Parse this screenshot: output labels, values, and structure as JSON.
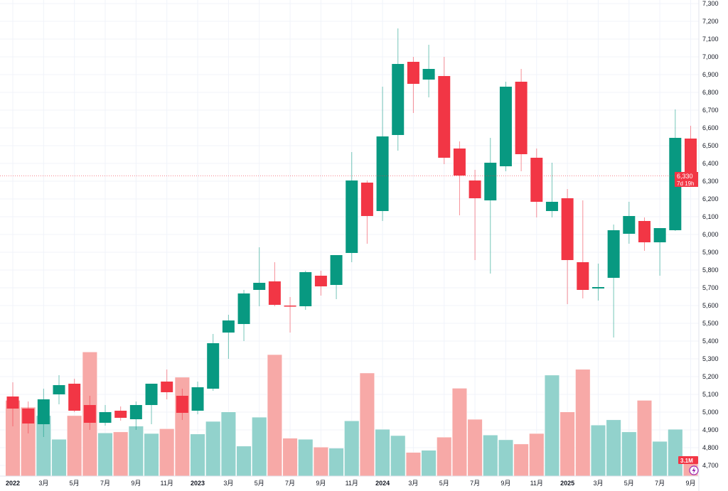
{
  "chart_data": {
    "type": "candlestick",
    "title": "",
    "x_tick_labels": [
      "2022",
      "3月",
      "5月",
      "7月",
      "9月",
      "11月",
      "2023",
      "3月",
      "5月",
      "7月",
      "9月",
      "11月",
      "2024",
      "3月",
      "5月",
      "7月",
      "9月",
      "11月",
      "2025",
      "3月",
      "5月",
      "7月",
      "9月"
    ],
    "y_ticks": [
      "7,300",
      "7,200",
      "7,100",
      "7,000",
      "6,900",
      "6,800",
      "6,700",
      "6,600",
      "6,500",
      "6,400",
      "6,300",
      "6,200",
      "6,100",
      "6,000",
      "5,900",
      "5,800",
      "5,700",
      "5,600",
      "5,500",
      "5,400",
      "5,300",
      "5,200",
      "5,100",
      "5,000",
      "4,900",
      "4,800",
      "4,700"
    ],
    "ylim": [
      4680,
      7300
    ],
    "grid": true,
    "months": [
      "2022-01",
      "2022-02",
      "2022-03",
      "2022-04",
      "2022-05",
      "2022-06",
      "2022-07",
      "2022-08",
      "2022-09",
      "2022-10",
      "2022-11",
      "2022-12",
      "2023-01",
      "2023-02",
      "2023-03",
      "2023-04",
      "2023-05",
      "2023-06",
      "2023-07",
      "2023-08",
      "2023-09",
      "2023-10",
      "2023-11",
      "2023-12",
      "2024-01",
      "2024-02",
      "2024-03",
      "2024-04",
      "2024-05",
      "2024-06",
      "2024-07",
      "2024-08",
      "2024-09",
      "2024-10",
      "2024-11",
      "2024-12",
      "2025-01",
      "2025-02",
      "2025-03",
      "2025-04",
      "2025-05",
      "2025-06",
      "2025-07",
      "2025-08",
      "2025-09"
    ],
    "ohlc": [
      [
        5088,
        5168,
        4920,
        5020
      ],
      [
        5020,
        5060,
        4880,
        4936
      ],
      [
        4932,
        5132,
        4860,
        5072
      ],
      [
        5100,
        5208,
        5044,
        5152
      ],
      [
        5160,
        5188,
        5000,
        5008
      ],
      [
        5040,
        5092,
        4900,
        4940
      ],
      [
        4940,
        5040,
        4924,
        5000
      ],
      [
        5008,
        5032,
        4952,
        4968
      ],
      [
        4960,
        5060,
        4900,
        5040
      ],
      [
        5040,
        5160,
        4932,
        5160
      ],
      [
        5172,
        5240,
        5072,
        5112
      ],
      [
        5092,
        5132,
        4956,
        4996
      ],
      [
        5008,
        5172,
        4988,
        5140
      ],
      [
        5132,
        5440,
        5120,
        5388
      ],
      [
        5448,
        5548,
        5300,
        5516
      ],
      [
        5496,
        5688,
        5400,
        5668
      ],
      [
        5688,
        5928,
        5596,
        5728
      ],
      [
        5736,
        5844,
        5596,
        5604
      ],
      [
        5600,
        5648,
        5448,
        5596
      ],
      [
        5596,
        5796,
        5576,
        5788
      ],
      [
        5768,
        5796,
        5656,
        5708
      ],
      [
        5716,
        5884,
        5636,
        5884
      ],
      [
        5896,
        6464,
        5844,
        6304
      ],
      [
        6292,
        6304,
        5948,
        6104
      ],
      [
        6132,
        6832,
        6076,
        6552
      ],
      [
        6560,
        7160,
        6472,
        6960
      ],
      [
        6972,
        7000,
        6684,
        6848
      ],
      [
        6872,
        7068,
        6772,
        6932
      ],
      [
        6892,
        7000,
        6396,
        6432
      ],
      [
        6484,
        6524,
        6108,
        6332
      ],
      [
        6304,
        6364,
        5856,
        6204
      ],
      [
        6192,
        6544,
        5780,
        6404
      ],
      [
        6384,
        6860,
        6356,
        6832
      ],
      [
        6860,
        6932,
        6356,
        6452
      ],
      [
        6432,
        6484,
        6096,
        6184
      ],
      [
        6132,
        6404,
        6096,
        6184
      ],
      [
        6204,
        6256,
        5608,
        5856
      ],
      [
        5844,
        6192,
        5640,
        5688
      ],
      [
        5696,
        5836,
        5628,
        5704
      ],
      [
        5756,
        6056,
        5420,
        6024
      ],
      [
        6004,
        6184,
        5948,
        6104
      ],
      [
        6076,
        6096,
        5908,
        5956
      ],
      [
        5956,
        6036,
        5768,
        6036
      ],
      [
        6024,
        6704,
        6020,
        6544
      ],
      [
        6540,
        6612,
        6320,
        6330
      ]
    ],
    "volume_millions": [
      14.4,
      13.1,
      11.5,
      7.0,
      11.5,
      23.6,
      8.2,
      8.4,
      9.5,
      8.1,
      9.0,
      18.8,
      8.0,
      10.4,
      12.2,
      5.7,
      11.2,
      23.1,
      7.2,
      7.0,
      5.5,
      5.3,
      10.5,
      19.6,
      8.9,
      7.7,
      4.5,
      4.9,
      7.4,
      16.7,
      10.8,
      7.8,
      6.9,
      6.1,
      8.1,
      19.2,
      12.2,
      20.3,
      9.7,
      10.7,
      8.4,
      14.4,
      6.6,
      8.9,
      3.1
    ],
    "last_price": 6330,
    "last_price_label": "6,330",
    "countdown": "7d 19h",
    "last_volume_label": "3.1M",
    "colors": {
      "up": "#089981",
      "down": "#F23645",
      "up_volume": "#92d2cc",
      "down_volume": "#f7a9a7",
      "grid": "#f0f3fa",
      "text": "#131722"
    }
  },
  "icons": {
    "corner_badge": "lightning-icon"
  }
}
